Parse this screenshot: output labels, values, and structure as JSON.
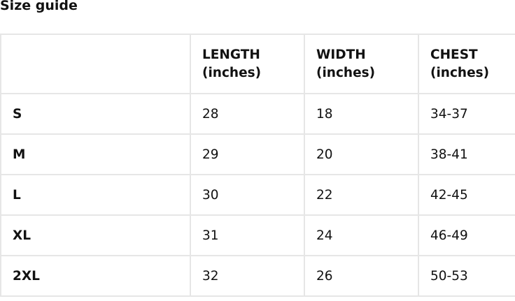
{
  "title": "Size guide",
  "headers": [
    "",
    "LENGTH (inches)",
    "WIDTH (inches)",
    "CHEST (inches)"
  ],
  "rows": [
    {
      "size": "S",
      "length": "28",
      "width": "18",
      "chest": "34-37"
    },
    {
      "size": "M",
      "length": "29",
      "width": "20",
      "chest": "38-41"
    },
    {
      "size": "L",
      "length": "30",
      "width": "22",
      "chest": "42-45"
    },
    {
      "size": "XL",
      "length": "31",
      "width": "24",
      "chest": "46-49"
    },
    {
      "size": "2XL",
      "length": "32",
      "width": "26",
      "chest": "50-53"
    }
  ]
}
